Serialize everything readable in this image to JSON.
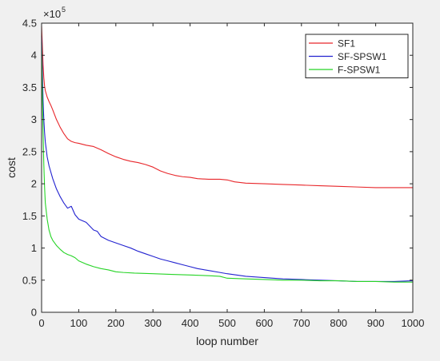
{
  "chart_data": {
    "type": "line",
    "xlabel": "loop number",
    "ylabel": "cost",
    "xlim": [
      0,
      1000
    ],
    "ylim": [
      0,
      4.5
    ],
    "y_exponent_label": "×10",
    "y_exponent_power": "5",
    "x_ticks": [
      0,
      100,
      200,
      300,
      400,
      500,
      600,
      700,
      800,
      900,
      1000
    ],
    "y_ticks": [
      0,
      0.5,
      1,
      1.5,
      2,
      2.5,
      3,
      3.5,
      4,
      4.5
    ],
    "x_tick_labels": [
      "0",
      "100",
      "200",
      "300",
      "400",
      "500",
      "600",
      "700",
      "800",
      "900",
      "1000"
    ],
    "y_tick_labels": [
      "0",
      "0.5",
      "1",
      "1.5",
      "2",
      "2.5",
      "3",
      "3.5",
      "4",
      "4.5"
    ],
    "grid": false,
    "legend_position": "top-right",
    "series": [
      {
        "name": "SF1",
        "color": "#e8262a",
        "points": [
          [
            0,
            4.45
          ],
          [
            2,
            4.15
          ],
          [
            4,
            3.85
          ],
          [
            6,
            3.65
          ],
          [
            8,
            3.52
          ],
          [
            10,
            3.45
          ],
          [
            15,
            3.35
          ],
          [
            20,
            3.28
          ],
          [
            25,
            3.22
          ],
          [
            30,
            3.15
          ],
          [
            40,
            3.0
          ],
          [
            50,
            2.88
          ],
          [
            60,
            2.78
          ],
          [
            70,
            2.7
          ],
          [
            80,
            2.66
          ],
          [
            90,
            2.64
          ],
          [
            100,
            2.63
          ],
          [
            120,
            2.6
          ],
          [
            140,
            2.58
          ],
          [
            160,
            2.53
          ],
          [
            180,
            2.47
          ],
          [
            200,
            2.42
          ],
          [
            220,
            2.38
          ],
          [
            240,
            2.35
          ],
          [
            260,
            2.33
          ],
          [
            280,
            2.3
          ],
          [
            300,
            2.26
          ],
          [
            320,
            2.2
          ],
          [
            340,
            2.16
          ],
          [
            360,
            2.13
          ],
          [
            380,
            2.11
          ],
          [
            400,
            2.1
          ],
          [
            420,
            2.08
          ],
          [
            450,
            2.07
          ],
          [
            480,
            2.07
          ],
          [
            500,
            2.06
          ],
          [
            520,
            2.03
          ],
          [
            550,
            2.01
          ],
          [
            600,
            2.0
          ],
          [
            650,
            1.99
          ],
          [
            700,
            1.98
          ],
          [
            750,
            1.97
          ],
          [
            800,
            1.96
          ],
          [
            850,
            1.95
          ],
          [
            900,
            1.94
          ],
          [
            950,
            1.94
          ],
          [
            1000,
            1.94
          ]
        ]
      },
      {
        "name": "SF-SPSW1",
        "color": "#2222d0",
        "points": [
          [
            0,
            4.3
          ],
          [
            2,
            3.8
          ],
          [
            4,
            3.3
          ],
          [
            6,
            3.0
          ],
          [
            8,
            2.8
          ],
          [
            10,
            2.65
          ],
          [
            15,
            2.42
          ],
          [
            20,
            2.28
          ],
          [
            25,
            2.18
          ],
          [
            30,
            2.08
          ],
          [
            40,
            1.92
          ],
          [
            50,
            1.8
          ],
          [
            60,
            1.7
          ],
          [
            70,
            1.62
          ],
          [
            80,
            1.65
          ],
          [
            90,
            1.52
          ],
          [
            100,
            1.45
          ],
          [
            120,
            1.4
          ],
          [
            140,
            1.28
          ],
          [
            150,
            1.26
          ],
          [
            160,
            1.18
          ],
          [
            180,
            1.12
          ],
          [
            200,
            1.08
          ],
          [
            220,
            1.04
          ],
          [
            240,
            1.0
          ],
          [
            260,
            0.95
          ],
          [
            280,
            0.91
          ],
          [
            300,
            0.87
          ],
          [
            320,
            0.83
          ],
          [
            340,
            0.8
          ],
          [
            360,
            0.77
          ],
          [
            380,
            0.74
          ],
          [
            400,
            0.71
          ],
          [
            420,
            0.68
          ],
          [
            450,
            0.65
          ],
          [
            480,
            0.62
          ],
          [
            500,
            0.6
          ],
          [
            550,
            0.56
          ],
          [
            600,
            0.54
          ],
          [
            650,
            0.52
          ],
          [
            700,
            0.51
          ],
          [
            750,
            0.5
          ],
          [
            800,
            0.49
          ],
          [
            850,
            0.48
          ],
          [
            900,
            0.48
          ],
          [
            950,
            0.48
          ],
          [
            1000,
            0.49
          ]
        ]
      },
      {
        "name": "F-SPSW1",
        "color": "#26d426",
        "points": [
          [
            0,
            4.2
          ],
          [
            2,
            3.4
          ],
          [
            4,
            2.8
          ],
          [
            6,
            2.3
          ],
          [
            8,
            1.95
          ],
          [
            10,
            1.7
          ],
          [
            15,
            1.45
          ],
          [
            20,
            1.28
          ],
          [
            25,
            1.18
          ],
          [
            30,
            1.12
          ],
          [
            40,
            1.04
          ],
          [
            50,
            0.98
          ],
          [
            60,
            0.93
          ],
          [
            70,
            0.9
          ],
          [
            80,
            0.88
          ],
          [
            90,
            0.85
          ],
          [
            100,
            0.8
          ],
          [
            120,
            0.75
          ],
          [
            140,
            0.71
          ],
          [
            160,
            0.68
          ],
          [
            180,
            0.66
          ],
          [
            200,
            0.63
          ],
          [
            220,
            0.62
          ],
          [
            250,
            0.61
          ],
          [
            300,
            0.6
          ],
          [
            350,
            0.59
          ],
          [
            400,
            0.58
          ],
          [
            450,
            0.57
          ],
          [
            480,
            0.56
          ],
          [
            500,
            0.53
          ],
          [
            550,
            0.52
          ],
          [
            600,
            0.51
          ],
          [
            650,
            0.5
          ],
          [
            700,
            0.5
          ],
          [
            750,
            0.49
          ],
          [
            800,
            0.49
          ],
          [
            850,
            0.48
          ],
          [
            900,
            0.48
          ],
          [
            950,
            0.47
          ],
          [
            1000,
            0.47
          ]
        ]
      }
    ]
  }
}
